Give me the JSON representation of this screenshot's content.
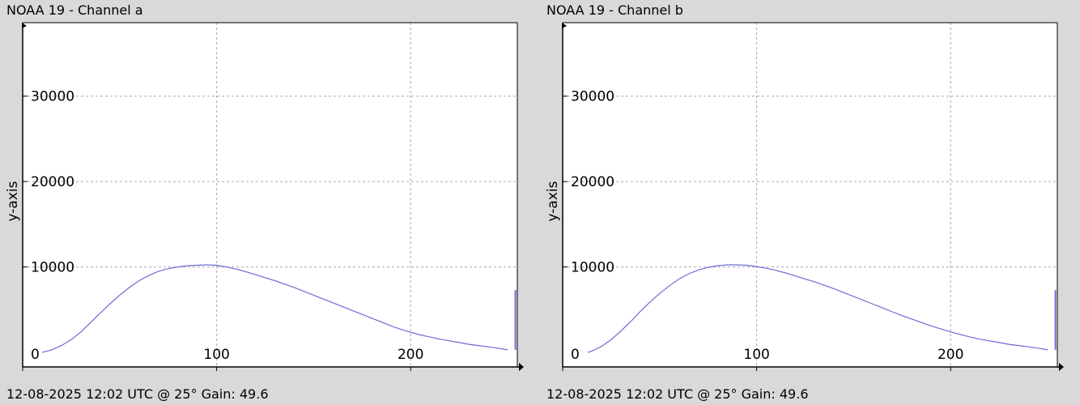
{
  "panels": [
    {
      "title": "NOAA 19 - Channel a",
      "footer": "12-08-2025 12:02 UTC @ 25° Gain: 49.6"
    },
    {
      "title": "NOAA 19 - Channel b",
      "footer": "12-08-2025 12:02 UTC @ 25° Gain: 49.6"
    }
  ],
  "chart_data": [
    {
      "type": "line",
      "title": "NOAA 19 - Channel a",
      "xlabel": "",
      "ylabel": "y-axis",
      "xlim": [
        0,
        255
      ],
      "ylim": [
        -1700,
        38600
      ],
      "xticks": [
        0,
        100,
        200
      ],
      "yticks": [
        10000,
        20000,
        30000
      ],
      "grid": true,
      "line_color": "#6b6bd6",
      "series": [
        {
          "x": [
            10,
            15,
            20,
            25,
            30,
            35,
            40,
            45,
            50,
            55,
            60,
            65,
            70,
            75,
            80,
            85,
            90,
            95,
            100,
            105,
            110,
            115,
            120,
            125,
            130,
            135,
            140,
            145,
            150,
            155,
            160,
            165,
            170,
            175,
            180,
            185,
            190,
            195,
            200,
            205,
            210,
            215,
            220,
            225,
            230,
            235,
            240,
            245,
            250,
            254
          ],
          "y": [
            0,
            300,
            800,
            1500,
            2400,
            3500,
            4600,
            5700,
            6700,
            7600,
            8400,
            9000,
            9500,
            9800,
            10000,
            10150,
            10200,
            10250,
            10200,
            10000,
            9750,
            9450,
            9100,
            8750,
            8400,
            8000,
            7600,
            7150,
            6700,
            6250,
            5800,
            5350,
            4900,
            4450,
            4000,
            3550,
            3100,
            2700,
            2350,
            2050,
            1800,
            1550,
            1350,
            1150,
            950,
            800,
            650,
            500,
            300,
            7300
          ]
        }
      ]
    },
    {
      "type": "line",
      "title": "NOAA 19 - Channel b",
      "xlabel": "",
      "ylabel": "y-axis",
      "xlim": [
        0,
        255
      ],
      "ylim": [
        -1700,
        38600
      ],
      "xticks": [
        0,
        100,
        200
      ],
      "yticks": [
        10000,
        20000,
        30000
      ],
      "grid": true,
      "line_color": "#6b6bd6",
      "series": [
        {
          "x": [
            13,
            15,
            20,
            25,
            30,
            35,
            40,
            45,
            50,
            55,
            60,
            65,
            70,
            75,
            80,
            85,
            90,
            95,
            100,
            105,
            110,
            115,
            120,
            125,
            130,
            135,
            140,
            145,
            150,
            155,
            160,
            165,
            170,
            175,
            180,
            185,
            190,
            195,
            200,
            205,
            210,
            215,
            220,
            225,
            230,
            235,
            240,
            245,
            250,
            254
          ],
          "y": [
            0,
            150,
            700,
            1500,
            2500,
            3600,
            4800,
            5900,
            6900,
            7800,
            8600,
            9200,
            9650,
            9950,
            10150,
            10250,
            10250,
            10200,
            10050,
            9850,
            9600,
            9300,
            8950,
            8600,
            8250,
            7850,
            7450,
            7000,
            6550,
            6100,
            5650,
            5200,
            4750,
            4300,
            3900,
            3500,
            3100,
            2750,
            2400,
            2100,
            1800,
            1550,
            1350,
            1150,
            950,
            800,
            650,
            500,
            300,
            7300
          ]
        }
      ]
    }
  ]
}
